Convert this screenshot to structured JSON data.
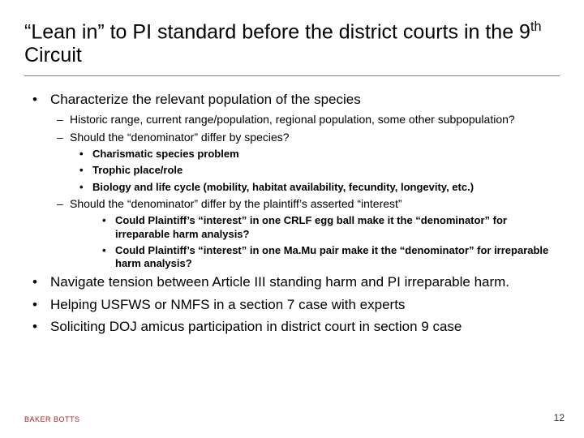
{
  "title_html": "“Lean in” to PI standard before the district courts in the 9<sup>th</sup> Circuit",
  "bullets": {
    "b1": "Characterize the relevant population of the species",
    "b1a": "Historic range, current range/population, regional population, some other subpopulation?",
    "b1b": "Should the “denominator” differ by species?",
    "b1b1": "Charismatic species problem",
    "b1b2": "Trophic place/role",
    "b1b3": "Biology and life cycle (mobility, habitat availability, fecundity, longevity, etc.)",
    "b1c": "Should the “denominator” differ by the plaintiff’s asserted “interest”",
    "b1c1": "Could Plaintiff’s “interest” in one CRLF egg ball make it the “denominator” for irreparable harm analysis?",
    "b1c2": "Could Plaintiff’s “interest” in one Ma.Mu pair make it the “denominator” for irreparable harm analysis?",
    "b2": "Navigate tension between Article III standing harm and PI irreparable harm.",
    "b3": "Helping USFWS or NMFS in a section 7 case with experts",
    "b4": "Soliciting DOJ amicus participation in district court in section 9 case"
  },
  "footer": {
    "brand": "BAKER BOTTS",
    "page": "12"
  },
  "colors": {
    "text": "#000000",
    "divider": "#808080",
    "brand": "#b22222",
    "background": "#ffffff"
  },
  "typography": {
    "title_fontsize": 25,
    "lvl1_fontsize": 17,
    "lvl2_fontsize": 14,
    "lvl3_fontsize": 13,
    "footer_fontsize": 9,
    "page_fontsize": 12,
    "font_family": "Segoe UI"
  }
}
